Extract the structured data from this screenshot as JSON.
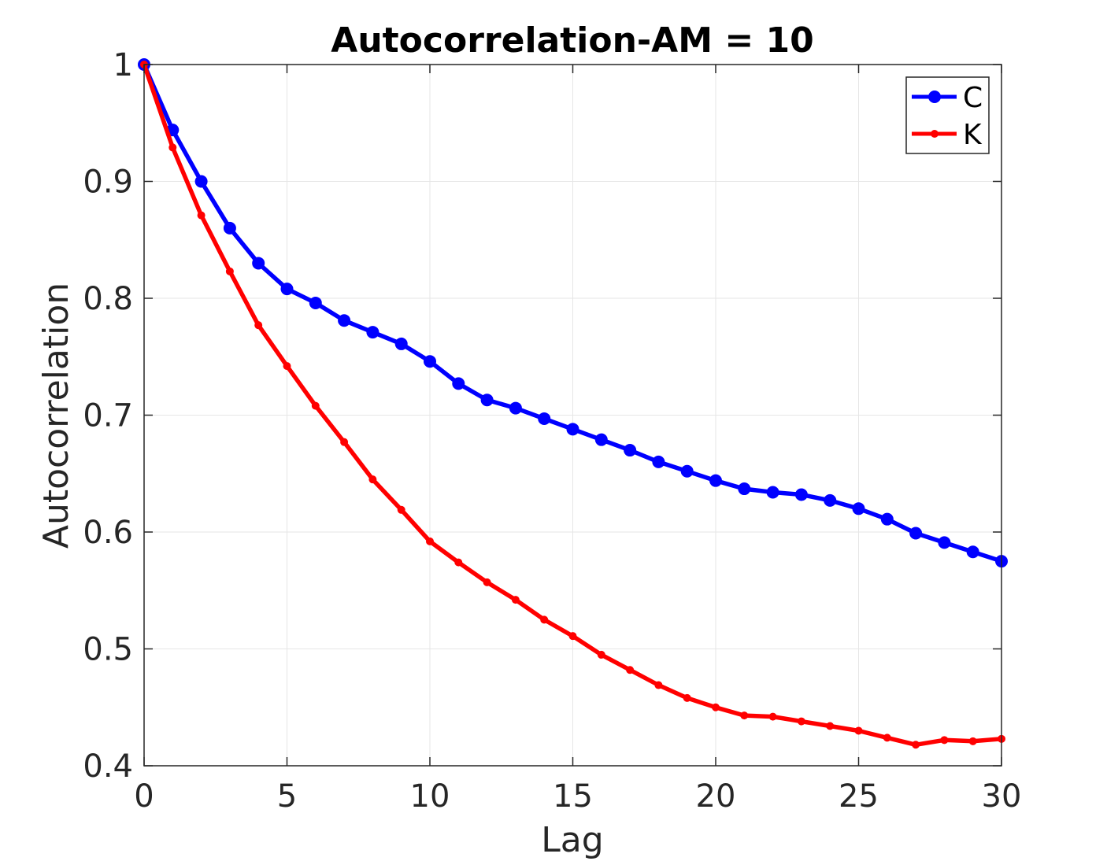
{
  "chart_data": {
    "type": "line",
    "title": "Autocorrelation-AM = 10",
    "xlabel": "Lag",
    "ylabel": "Autocorrelation",
    "xlim": [
      0,
      30
    ],
    "ylim": [
      0.4,
      1
    ],
    "xticks": [
      0,
      5,
      10,
      15,
      20,
      25,
      30
    ],
    "xtick_labels": [
      "0",
      "5",
      "10",
      "15",
      "20",
      "25",
      "30"
    ],
    "yticks": [
      0.4,
      0.5,
      0.6,
      0.7,
      0.8,
      0.9,
      1
    ],
    "ytick_labels": [
      "0.4",
      "0.5",
      "0.6",
      "0.7",
      "0.8",
      "0.9",
      "1"
    ],
    "grid": true,
    "legend_position": "top-right",
    "x": [
      0,
      1,
      2,
      3,
      4,
      5,
      6,
      7,
      8,
      9,
      10,
      11,
      12,
      13,
      14,
      15,
      16,
      17,
      18,
      19,
      20,
      21,
      22,
      23,
      24,
      25,
      26,
      27,
      28,
      29,
      30
    ],
    "series": [
      {
        "name": "C",
        "color": "#0000ff",
        "marker": "large-circle",
        "values": [
          1.0,
          0.944,
          0.9,
          0.86,
          0.83,
          0.808,
          0.796,
          0.781,
          0.771,
          0.761,
          0.746,
          0.727,
          0.713,
          0.706,
          0.697,
          0.688,
          0.679,
          0.67,
          0.66,
          0.652,
          0.644,
          0.637,
          0.634,
          0.632,
          0.627,
          0.62,
          0.611,
          0.599,
          0.591,
          0.583,
          0.575
        ]
      },
      {
        "name": "K",
        "color": "#ff0000",
        "marker": "small-dot",
        "values": [
          1.0,
          0.929,
          0.871,
          0.823,
          0.777,
          0.742,
          0.708,
          0.677,
          0.645,
          0.619,
          0.592,
          0.574,
          0.557,
          0.542,
          0.525,
          0.511,
          0.495,
          0.482,
          0.469,
          0.458,
          0.45,
          0.443,
          0.442,
          0.438,
          0.434,
          0.43,
          0.424,
          0.418,
          0.422,
          0.421,
          0.423
        ]
      }
    ]
  }
}
